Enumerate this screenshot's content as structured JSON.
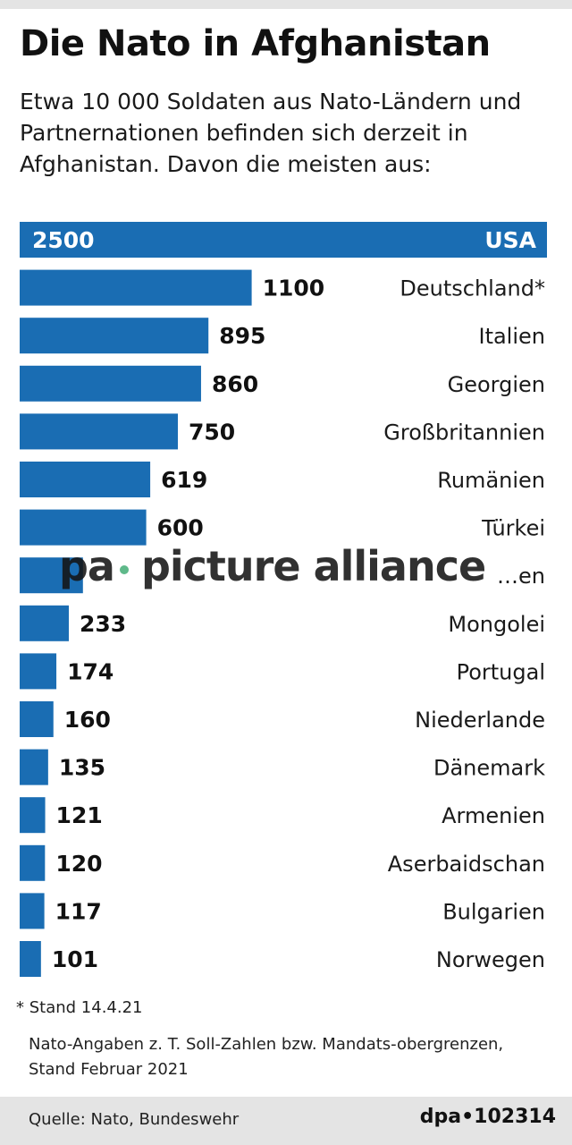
{
  "header": {
    "title": "Die Nato in Afghanistan",
    "subtitle": "Etwa 10 000 Soldaten aus Nato-Ländern und Partnernationen befinden sich derzeit in Afghanistan. Davon die meisten aus:"
  },
  "chart_data": {
    "type": "bar",
    "orientation": "horizontal",
    "categories": [
      "USA",
      "Deutschland*",
      "Italien",
      "Georgien",
      "Großbritannien",
      "Rumänien",
      "Türkei",
      "Polen",
      "Mongolei",
      "Portugal",
      "Niederlande",
      "Dänemark",
      "Armenien",
      "Aserbaidschan",
      "Bulgarien",
      "Norwegen"
    ],
    "values": [
      2500,
      1100,
      895,
      860,
      750,
      619,
      600,
      300,
      233,
      174,
      160,
      135,
      121,
      120,
      117,
      101
    ],
    "value_labels": [
      "2500",
      "1100",
      "895",
      "860",
      "750",
      "619",
      "600",
      "",
      "233",
      "174",
      "160",
      "135",
      "121",
      "120",
      "117",
      "101"
    ],
    "category_labels": [
      "USA",
      "Deutschland*",
      "Italien",
      "Georgien",
      "Großbritannien",
      "Rumänien",
      "Türkei",
      "…en",
      "Mongolei",
      "Portugal",
      "Niederlande",
      "Dänemark",
      "Armenien",
      "Aserbaidschan",
      "Bulgarien",
      "Norwegen"
    ],
    "xlim": [
      0,
      2500
    ],
    "grid": false,
    "bar_color": "#1a6db3"
  },
  "notes": {
    "footnote": "* Stand 14.4.21",
    "source_note": "Nato-Angaben z. T. Soll-Zahlen bzw. Mandats-obergrenzen, Stand Februar 2021"
  },
  "footer": {
    "source": "Quelle: Nato, Bundeswehr",
    "credit": "dpa•102314"
  },
  "watermark": {
    "left": "pa",
    "text": "picture alliance"
  }
}
